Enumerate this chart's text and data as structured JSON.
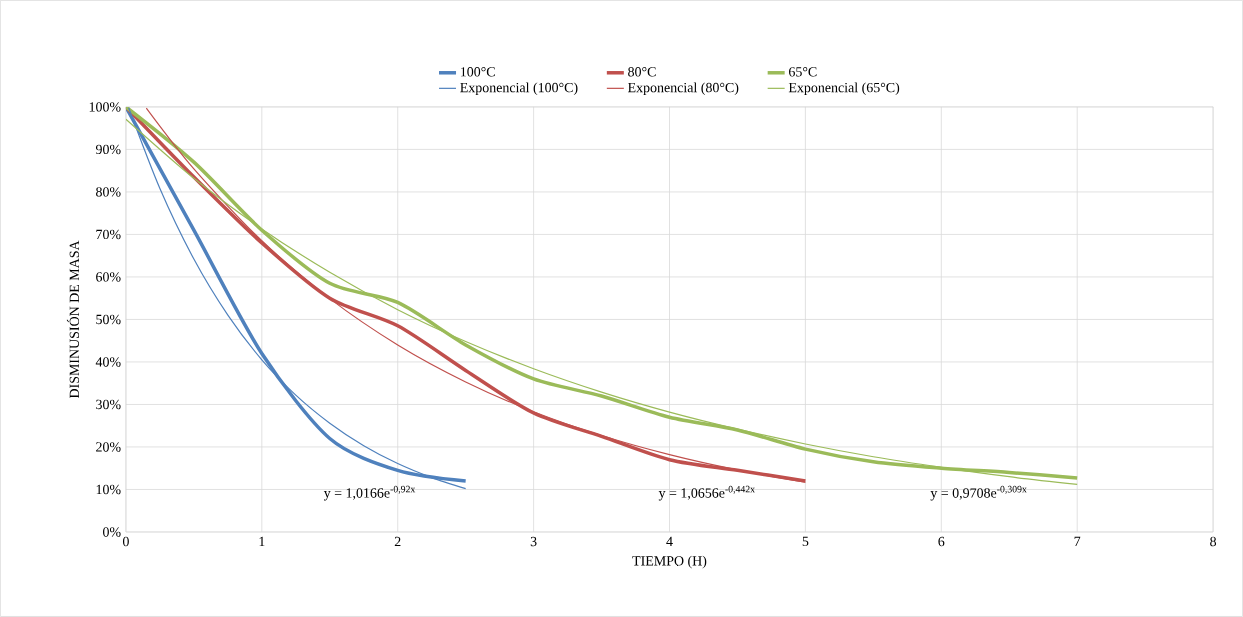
{
  "chart_data": {
    "type": "line",
    "xlabel": "TIEMPO (H)",
    "ylabel": "DISMINUSIÓN DE MASA",
    "x": [
      0,
      0.5,
      1,
      1.5,
      2,
      2.5,
      3,
      3.5,
      4,
      4.5,
      5,
      5.5,
      6,
      6.5,
      7
    ],
    "series": [
      {
        "name": "100°C",
        "color": "#4f81bd",
        "values": [
          100,
          71,
          42,
          22,
          14.5,
          12,
          null,
          null,
          null,
          null,
          null,
          null,
          null,
          null,
          null
        ]
      },
      {
        "name": "80°C",
        "color": "#c0504d",
        "values": [
          100,
          83.5,
          68,
          55,
          48.5,
          38,
          28,
          22.5,
          17,
          14.5,
          12,
          null,
          null,
          null,
          null
        ]
      },
      {
        "name": "65°C",
        "color": "#9bbb59",
        "values": [
          100,
          87,
          71,
          58.5,
          54,
          44,
          36,
          32,
          27,
          24,
          19.5,
          16.5,
          15,
          14,
          12.7
        ]
      },
      {
        "name": "Exponencial (100°C)",
        "color": "#4f81bd",
        "type": "line",
        "x": [
          0.02,
          0.25,
          0.5,
          0.75,
          1,
          1.25,
          1.5,
          1.75,
          2,
          2.25,
          2.5
        ],
        "values": [
          99.8,
          80.8,
          64.2,
          51.0,
          40.5,
          32.2,
          25.6,
          20.3,
          16.1,
          12.8,
          10.2
        ]
      },
      {
        "name": "Exponencial (80°C)",
        "color": "#c0504d",
        "type": "line",
        "x": [
          0.15,
          0.5,
          1,
          1.5,
          2,
          2.5,
          3,
          3.5,
          4,
          4.5,
          5
        ],
        "values": [
          99.7,
          85.4,
          68.5,
          54.9,
          44.0,
          35.3,
          28.3,
          22.7,
          18.2,
          14.6,
          11.7
        ]
      },
      {
        "name": "Exponencial (65°C)",
        "color": "#9bbb59",
        "type": "line",
        "x": [
          0,
          0.5,
          1,
          1.5,
          2,
          2.5,
          3,
          3.5,
          4,
          4.5,
          5,
          5.5,
          6,
          6.5,
          7
        ],
        "values": [
          97.1,
          83.2,
          71.3,
          61.1,
          52.3,
          44.8,
          38.4,
          32.9,
          28.2,
          24.2,
          20.7,
          17.7,
          15.2,
          13.0,
          11.2
        ]
      }
    ],
    "annotations": [
      "y = 1,0166e$^{-0,92x}$",
      "y = 1,0656e$^{-0,442x}$",
      "y = 0,9708e$^{-0,309x}$"
    ],
    "xlim": [
      0,
      8
    ],
    "xticks": [
      0,
      1,
      2,
      3,
      4,
      5,
      6,
      7,
      8
    ],
    "ylim": [
      0,
      100
    ],
    "yticks": [
      {
        "value": 0,
        "label": "0%"
      },
      {
        "value": 10,
        "label": "10%"
      },
      {
        "value": 20,
        "label": "20%"
      },
      {
        "value": 30,
        "label": "30%"
      },
      {
        "value": 40,
        "label": "40%"
      },
      {
        "value": 50,
        "label": "50%"
      },
      {
        "value": 60,
        "label": "60%"
      },
      {
        "value": 70,
        "label": "70%"
      },
      {
        "value": 80,
        "label": "80%"
      },
      {
        "value": 90,
        "label": "90%"
      },
      {
        "value": 100,
        "label": "100%"
      }
    ],
    "grid": true,
    "legend": "top",
    "marker": "none"
  }
}
